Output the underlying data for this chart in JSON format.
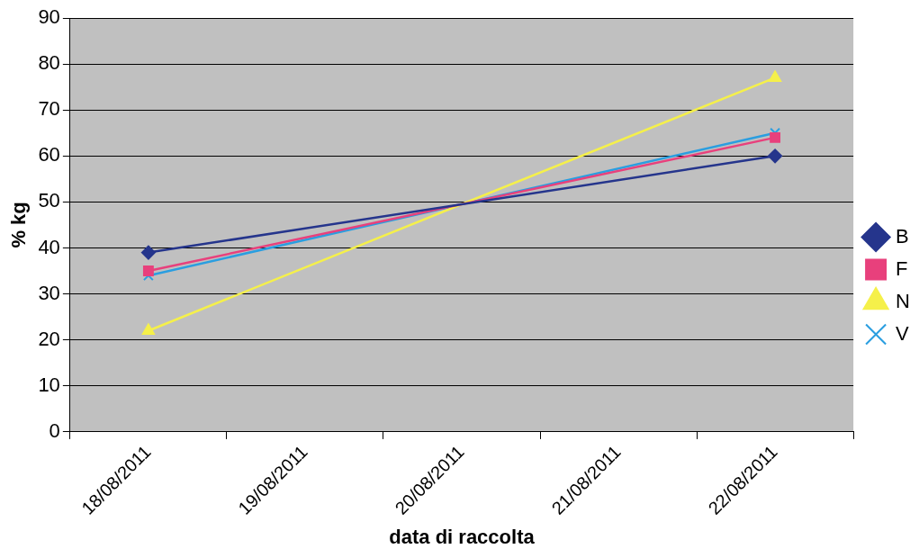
{
  "chart_data": {
    "type": "line",
    "xlabel": "data di raccolta",
    "ylabel": "% kg",
    "categories": [
      "18/08/2011",
      "19/08/2011",
      "20/08/2011",
      "21/08/2011",
      "22/08/2011"
    ],
    "series": [
      {
        "name": "B",
        "color": "#25358c",
        "marker": "diamond",
        "values": [
          39,
          null,
          null,
          null,
          60
        ]
      },
      {
        "name": "F",
        "color": "#e8407c",
        "marker": "square",
        "values": [
          35,
          null,
          null,
          null,
          64
        ]
      },
      {
        "name": "N",
        "color": "#f5f04a",
        "marker": "triangle",
        "values": [
          22,
          null,
          null,
          null,
          77
        ]
      },
      {
        "name": "V",
        "color": "#2a9ee0",
        "marker": "cross",
        "values": [
          34,
          null,
          null,
          null,
          65
        ]
      }
    ],
    "ylim": [
      0,
      90
    ],
    "yticks": [
      0,
      10,
      20,
      30,
      40,
      50,
      60,
      70,
      80,
      90
    ],
    "grid": "y",
    "legend": "right",
    "line_style": "solid"
  }
}
